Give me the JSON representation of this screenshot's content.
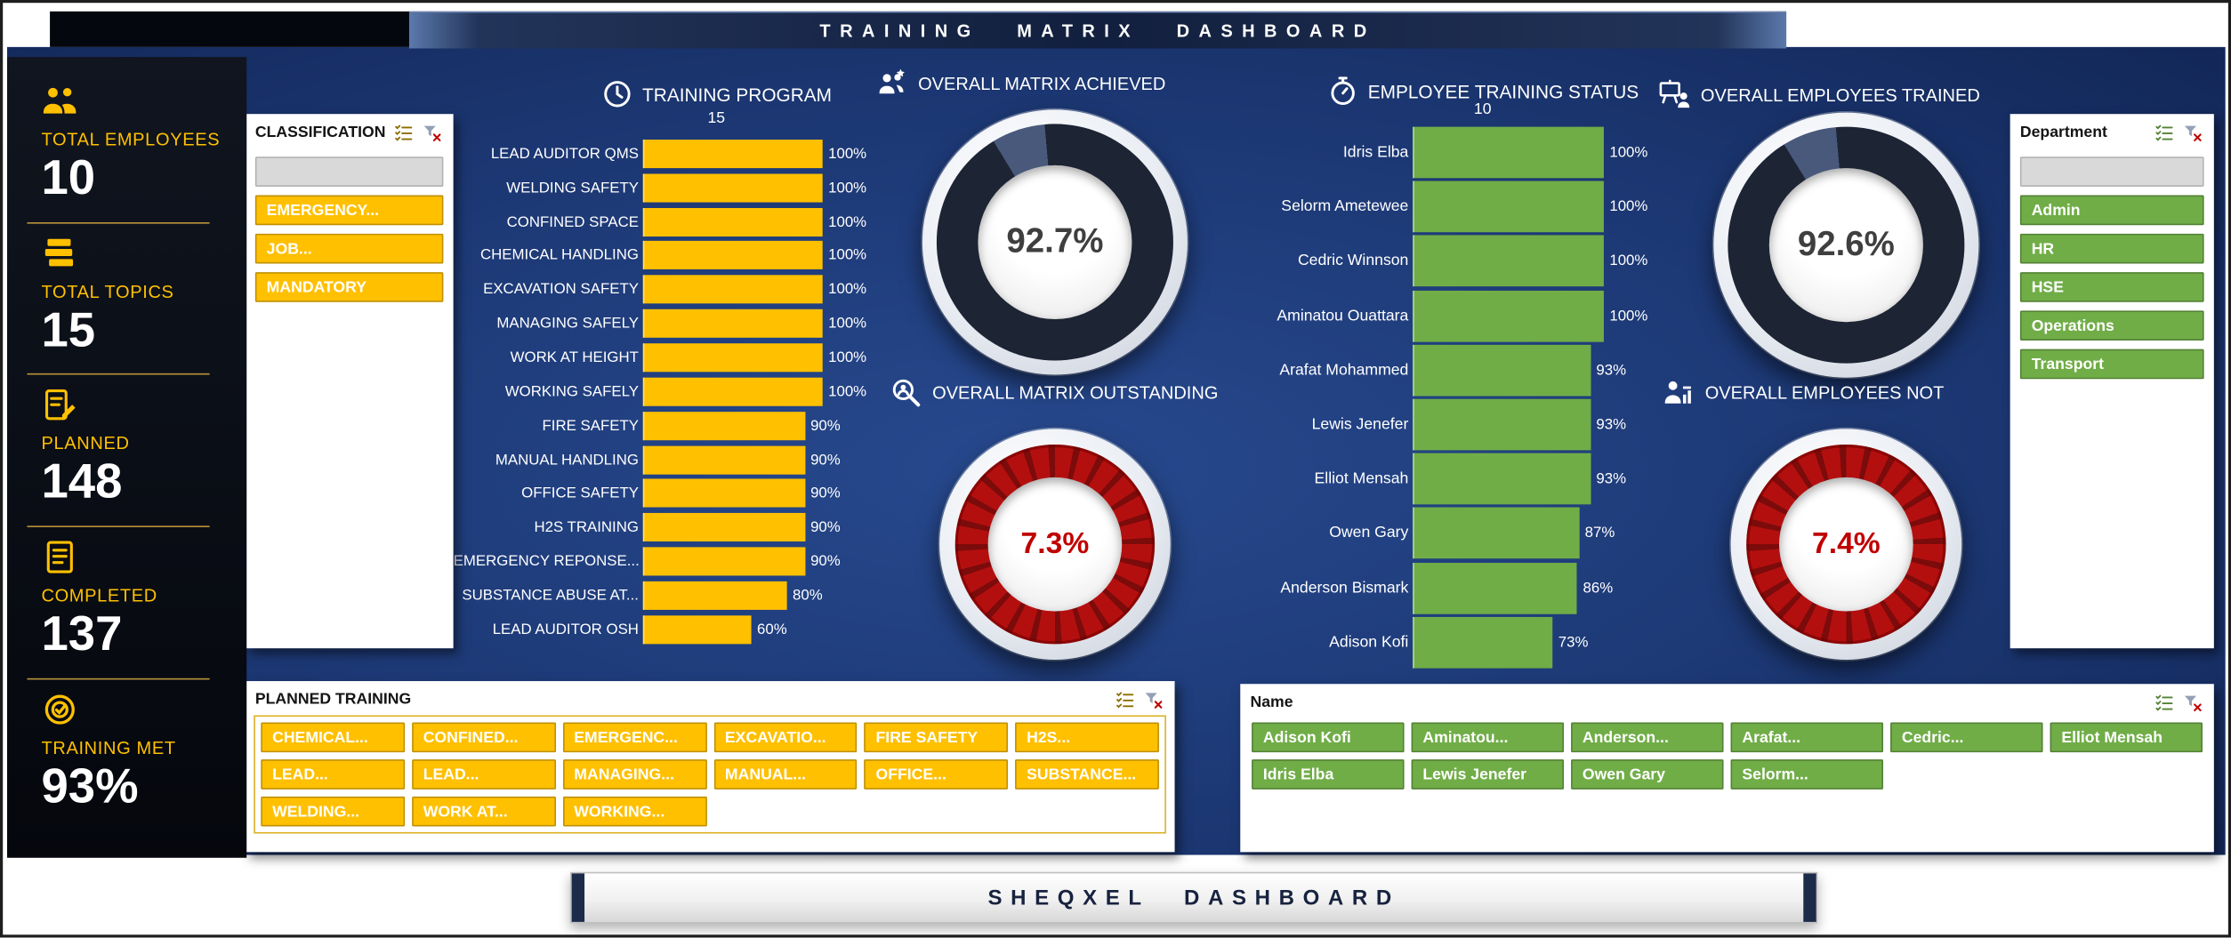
{
  "colors": {
    "gold": "#FFC000",
    "green": "#70AD47",
    "red": "#C00000",
    "navy_background": "#102350",
    "dark_ring": "#1D2434",
    "sidebar_black": "#05070D"
  },
  "title_bar": {
    "title": "TRAINING MATRIX DASHBOARD"
  },
  "sidebar": {
    "stats": [
      {
        "icon": "users-icon",
        "label": "TOTAL EMPLOYEES",
        "value": "10"
      },
      {
        "icon": "books-icon",
        "label": "TOTAL TOPICS",
        "value": "15"
      },
      {
        "icon": "planned-icon",
        "label": "PLANNED",
        "value": "148"
      },
      {
        "icon": "completed-icon",
        "label": "COMPLETED",
        "value": "137"
      },
      {
        "icon": "target-icon",
        "label": "TRAINING MET",
        "value": "93%"
      }
    ]
  },
  "slicers": {
    "classification": {
      "title": "CLASSIFICATION",
      "has_blank": true,
      "items": [
        "EMERGENCY...",
        "JOB...",
        "MANDATORY"
      ]
    },
    "department": {
      "title": "Department",
      "has_blank": true,
      "items": [
        "Admin",
        "HR",
        "HSE",
        "Operations",
        "Transport"
      ]
    },
    "planned_training": {
      "title": "PLANNED TRAINING",
      "items": [
        "CHEMICAL...",
        "CONFINED...",
        "EMERGENC...",
        "EXCAVATIO...",
        "FIRE SAFETY",
        "H2S...",
        "LEAD...",
        "LEAD...",
        "MANAGING...",
        "MANUAL...",
        "OFFICE...",
        "SUBSTANCE...",
        "WELDING...",
        "WORK AT...",
        "WORKING..."
      ]
    },
    "name": {
      "title": "Name",
      "items": [
        "Adison Kofi",
        "Aminatou...",
        "Anderson...",
        "Arafat...",
        "Cedric...",
        "Elliot Mensah",
        "Idris Elba",
        "Lewis Jenefer",
        "Owen Gary",
        "Selorm..."
      ]
    }
  },
  "chart_data": [
    {
      "id": "training_program",
      "type": "bar",
      "orientation": "horizontal",
      "title": "TRAINING PROGRAM",
      "subtitle": "15",
      "icon": "clock-icon",
      "unit": "%",
      "xlim": [
        0,
        100
      ],
      "bar_color": "#FFC000",
      "grid": false,
      "categories": [
        "LEAD AUDITOR QMS",
        "WELDING SAFETY",
        "CONFINED SPACE",
        "CHEMICAL HANDLING",
        "EXCAVATION SAFETY",
        "MANAGING SAFELY",
        "WORK AT HEIGHT",
        "WORKING SAFELY",
        "FIRE SAFETY",
        "MANUAL HANDLING",
        "OFFICE SAFETY",
        "H2S TRAINING",
        "EMERGENCY REPONSE...",
        "SUBSTANCE ABUSE AT...",
        "LEAD AUDITOR OSH"
      ],
      "values": [
        100,
        100,
        100,
        100,
        100,
        100,
        100,
        100,
        90,
        90,
        90,
        90,
        90,
        80,
        60
      ]
    },
    {
      "id": "employee_training_status",
      "type": "bar",
      "orientation": "horizontal",
      "title": "EMPLOYEE TRAINING STATUS",
      "subtitle": "10",
      "icon": "stopwatch-icon",
      "unit": "%",
      "xlim": [
        0,
        100
      ],
      "bar_color": "#70AD47",
      "grid": false,
      "categories": [
        "Idris Elba",
        "Selorm Ametewee",
        "Cedric Winnson",
        "Aminatou Ouattara",
        "Arafat Mohammed",
        "Lewis Jenefer",
        "Elliot Mensah",
        "Owen Gary",
        "Anderson Bismark",
        "Adison Kofi"
      ],
      "values": [
        100,
        100,
        100,
        100,
        93,
        93,
        93,
        87,
        86,
        73
      ]
    },
    {
      "id": "overall_matrix_achieved",
      "type": "donut",
      "title": "OVERALL MATRIX ACHIEVED",
      "value": 92.7,
      "display": "92.7%",
      "icon": "people-star-icon",
      "ring_color": "#1D2434"
    },
    {
      "id": "overall_matrix_outstanding",
      "type": "donut",
      "title": "OVERALL MATRIX OUTSTANDING",
      "value": 7.3,
      "display": "7.3%",
      "icon": "magnifier-person-icon",
      "ring_color": "#C00000"
    },
    {
      "id": "overall_employees_trained",
      "type": "donut",
      "title": "OVERALL EMPLOYEES TRAINED",
      "value": 92.6,
      "display": "92.6%",
      "icon": "training-board-icon",
      "ring_color": "#1D2434"
    },
    {
      "id": "overall_employees_not",
      "type": "donut",
      "title": "OVERALL EMPLOYEES NOT",
      "value": 7.4,
      "display": "7.4%",
      "icon": "person-chart-icon",
      "ring_color": "#C00000"
    }
  ],
  "footer": {
    "title": "SHEQXEL DASHBOARD"
  }
}
